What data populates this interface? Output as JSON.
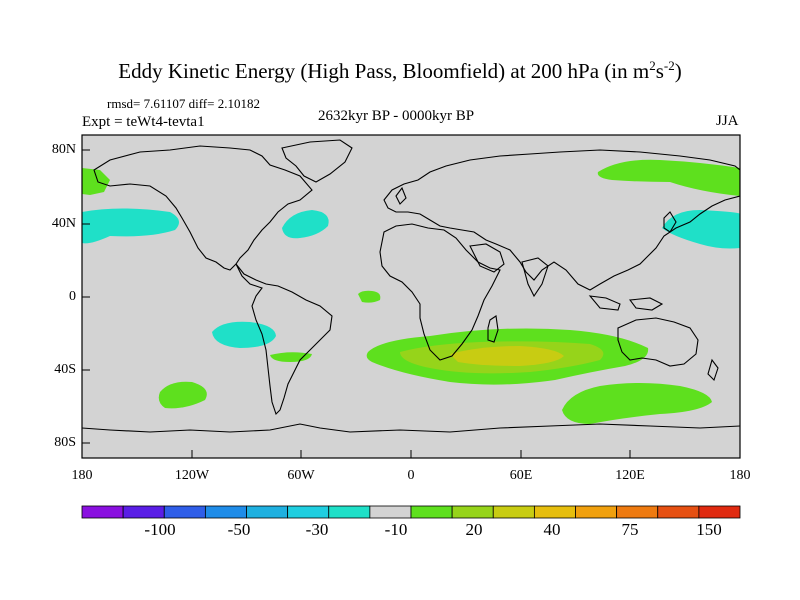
{
  "map": {
    "title": "Eddy Kinetic Energy (High Pass, Bloomfield) at 200 hPa (in m",
    "title_unit_m_exp": "2",
    "title_unit_s": "s",
    "title_unit_s_exp": "-2",
    "title_close": ")",
    "stats": "rmsd= 7.61107 diff= 2.10182",
    "expt": "Expt = teWt4-tevta1",
    "period": "2632kyr BP - 0000kyr BP",
    "season": "JJA",
    "y_ticks": [
      "80N",
      "40N",
      "0",
      "40S",
      "80S"
    ],
    "x_ticks": [
      "180",
      "120W",
      "60W",
      "0",
      "60E",
      "120E",
      "180"
    ]
  },
  "colorbar": {
    "colors": [
      "#8a10e0",
      "#5a1ee6",
      "#2f5ee8",
      "#1f8ce8",
      "#1fb0e0",
      "#1fcee0",
      "#1fe0c8",
      "#d3d3d3",
      "#5ee01e",
      "#96d41a",
      "#c8cc12",
      "#e6be0e",
      "#f0a00e",
      "#ee7a10",
      "#e65012",
      "#e02a10"
    ],
    "labels": [
      "-100",
      "-50",
      "-30",
      "-10",
      "20",
      "40",
      "75",
      "150"
    ]
  },
  "colors": {
    "land_ocean_neutral": "#d3d3d3",
    "green": "#5ee01e",
    "light_green": "#96d41a",
    "yellow_green": "#c8cc12",
    "cyan": "#1fe0c8"
  }
}
